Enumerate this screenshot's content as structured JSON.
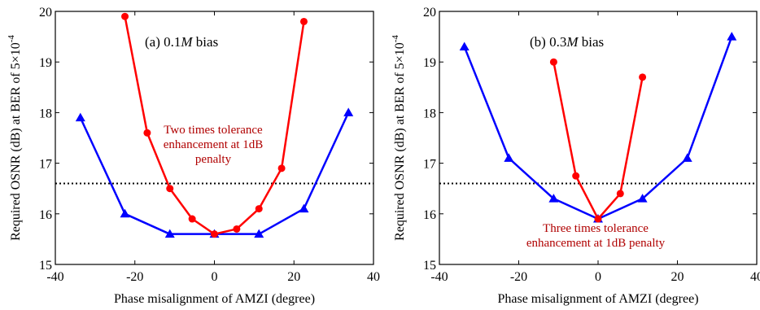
{
  "chart_data": [
    {
      "type": "line",
      "title_prefix": "(a) 0.1",
      "title_italic": "M",
      "title_suffix": " bias",
      "xlabel": "Phase misalignment of AMZI (degree)",
      "ylabel_main": "Required OSNR (dB) at BER of 5×10",
      "ylabel_sup": "-4",
      "xlim": [
        -40,
        40
      ],
      "ylim": [
        15,
        20
      ],
      "xticks": [
        -40,
        -20,
        0,
        20,
        40
      ],
      "yticks": [
        15,
        16,
        17,
        18,
        19,
        20
      ],
      "reference_line": {
        "y": 16.6,
        "style": "dotted"
      },
      "annotation": [
        "Two times tolerance",
        "enhancement at 1dB",
        "penalty"
      ],
      "series": [
        {
          "color": "#0000ff",
          "marker": "triangle",
          "x": [
            -33.7,
            -22.5,
            -11.2,
            0,
            11.2,
            22.5,
            33.7
          ],
          "y": [
            17.9,
            16.0,
            15.6,
            15.6,
            15.6,
            16.1,
            18.0
          ]
        },
        {
          "color": "#ff0000",
          "marker": "circle",
          "x": [
            -22.5,
            -16.9,
            -11.2,
            -5.6,
            0,
            5.6,
            11.2,
            16.9,
            22.5
          ],
          "y": [
            19.9,
            17.6,
            16.5,
            15.9,
            15.6,
            15.7,
            16.1,
            16.9,
            19.8
          ]
        }
      ]
    },
    {
      "type": "line",
      "title_prefix": "(b) 0.3",
      "title_italic": "M",
      "title_suffix": " bias",
      "xlabel": "Phase misalignment of AMZI (degree)",
      "ylabel_main": "Required OSNR (dB) at BER of 5×10",
      "ylabel_sup": "-4",
      "xlim": [
        -40,
        40
      ],
      "ylim": [
        15,
        20
      ],
      "xticks": [
        -40,
        -20,
        0,
        20,
        40
      ],
      "yticks": [
        15,
        16,
        17,
        18,
        19,
        20
      ],
      "reference_line": {
        "y": 16.6,
        "style": "dotted"
      },
      "annotation": [
        "Three times tolerance",
        "enhancement at 1dB penalty"
      ],
      "series": [
        {
          "color": "#0000ff",
          "marker": "triangle",
          "x": [
            -33.7,
            -22.5,
            -11.2,
            0,
            11.2,
            22.5,
            33.7
          ],
          "y": [
            19.3,
            17.1,
            16.3,
            15.9,
            16.3,
            17.1,
            19.5
          ]
        },
        {
          "color": "#ff0000",
          "marker": "circle",
          "x": [
            -11.2,
            -5.6,
            0,
            5.6,
            11.2
          ],
          "y": [
            19.0,
            16.75,
            15.9,
            16.4,
            18.7
          ]
        }
      ]
    }
  ]
}
